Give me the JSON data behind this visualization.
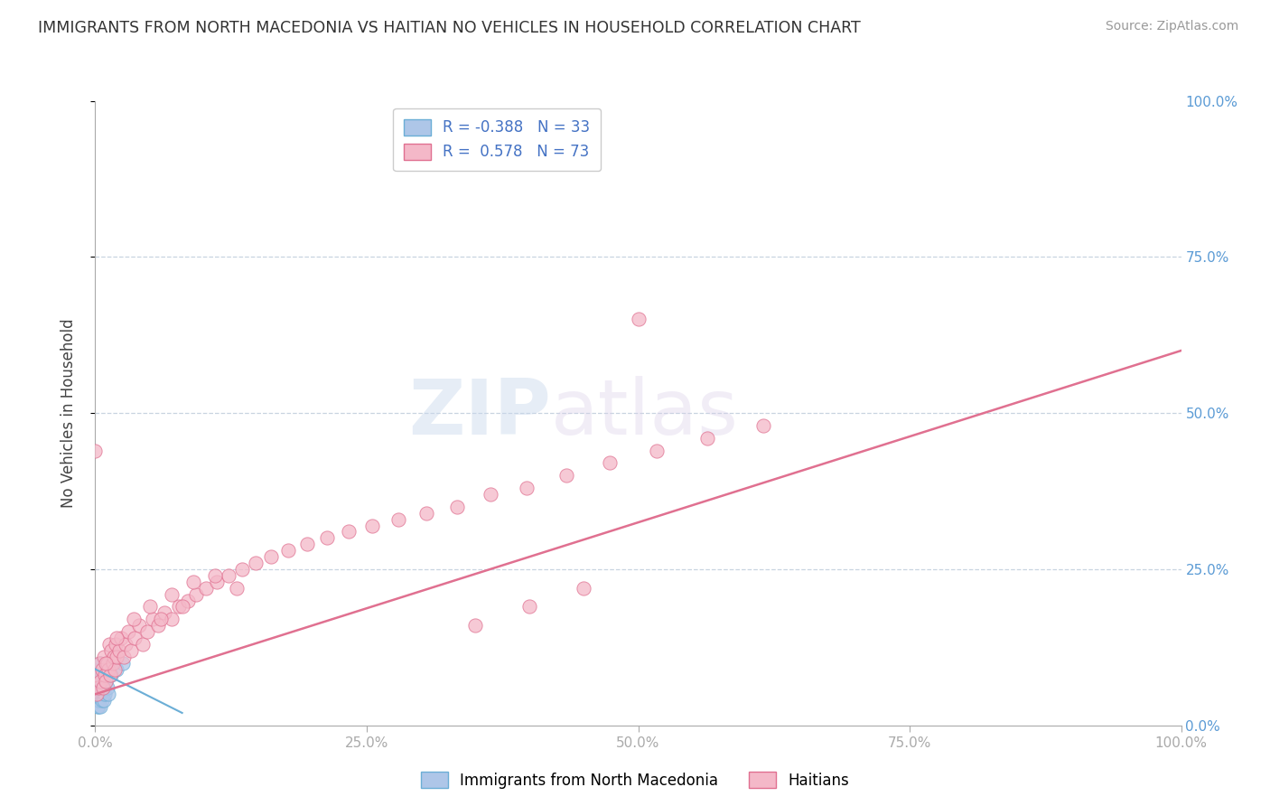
{
  "title": "IMMIGRANTS FROM NORTH MACEDONIA VS HAITIAN NO VEHICLES IN HOUSEHOLD CORRELATION CHART",
  "source": "Source: ZipAtlas.com",
  "ylabel": "No Vehicles in Household",
  "legend_series": [
    {
      "label": "Immigrants from North Macedonia",
      "R": -0.388,
      "N": 33,
      "color": "#aec6e8",
      "edge_color": "#6baed6"
    },
    {
      "label": "Haitians",
      "R": 0.578,
      "N": 73,
      "color": "#f4b8c8",
      "edge_color": "#e07090"
    }
  ],
  "xlim": [
    0.0,
    1.0
  ],
  "ylim": [
    0.0,
    1.0
  ],
  "x_ticks": [
    0.0,
    0.25,
    0.5,
    0.75,
    1.0
  ],
  "x_tick_labels": [
    "0.0%",
    "25.0%",
    "50.0%",
    "75.0%",
    "100.0%"
  ],
  "y_ticks": [
    0.0,
    0.25,
    0.5,
    0.75,
    1.0
  ],
  "y_tick_labels_right": [
    "0.0%",
    "25.0%",
    "50.0%",
    "75.0%",
    "100.0%"
  ],
  "background_color": "#ffffff",
  "grid_color": "#c8d4e0",
  "watermark_zip": "ZIP",
  "watermark_atlas": "atlas",
  "blue_scatter_x": [
    0.001,
    0.001,
    0.001,
    0.002,
    0.002,
    0.002,
    0.002,
    0.003,
    0.003,
    0.003,
    0.003,
    0.004,
    0.004,
    0.004,
    0.004,
    0.005,
    0.005,
    0.005,
    0.005,
    0.006,
    0.006,
    0.006,
    0.007,
    0.007,
    0.008,
    0.008,
    0.009,
    0.01,
    0.011,
    0.012,
    0.015,
    0.02,
    0.025
  ],
  "blue_scatter_y": [
    0.04,
    0.05,
    0.06,
    0.03,
    0.04,
    0.05,
    0.07,
    0.03,
    0.04,
    0.06,
    0.08,
    0.04,
    0.05,
    0.06,
    0.09,
    0.03,
    0.05,
    0.07,
    0.1,
    0.04,
    0.06,
    0.08,
    0.05,
    0.07,
    0.04,
    0.06,
    0.05,
    0.07,
    0.06,
    0.05,
    0.08,
    0.09,
    0.1
  ],
  "pink_scatter_x": [
    0.001,
    0.002,
    0.003,
    0.004,
    0.005,
    0.006,
    0.007,
    0.008,
    0.009,
    0.01,
    0.011,
    0.012,
    0.013,
    0.014,
    0.015,
    0.016,
    0.017,
    0.018,
    0.019,
    0.02,
    0.022,
    0.024,
    0.026,
    0.028,
    0.03,
    0.033,
    0.036,
    0.04,
    0.044,
    0.048,
    0.053,
    0.058,
    0.064,
    0.07,
    0.077,
    0.085,
    0.093,
    0.102,
    0.112,
    0.123,
    0.135,
    0.148,
    0.162,
    0.178,
    0.195,
    0.213,
    0.233,
    0.255,
    0.279,
    0.305,
    0.333,
    0.364,
    0.397,
    0.434,
    0.474,
    0.517,
    0.564,
    0.615,
    0.0,
    0.01,
    0.02,
    0.035,
    0.05,
    0.07,
    0.09,
    0.11,
    0.13,
    0.06,
    0.08,
    0.5,
    0.45,
    0.4,
    0.35
  ],
  "pink_scatter_y": [
    0.05,
    0.08,
    0.06,
    0.1,
    0.07,
    0.09,
    0.06,
    0.11,
    0.08,
    0.07,
    0.1,
    0.09,
    0.13,
    0.08,
    0.12,
    0.1,
    0.11,
    0.09,
    0.13,
    0.11,
    0.12,
    0.14,
    0.11,
    0.13,
    0.15,
    0.12,
    0.14,
    0.16,
    0.13,
    0.15,
    0.17,
    0.16,
    0.18,
    0.17,
    0.19,
    0.2,
    0.21,
    0.22,
    0.23,
    0.24,
    0.25,
    0.26,
    0.27,
    0.28,
    0.29,
    0.3,
    0.31,
    0.32,
    0.33,
    0.34,
    0.35,
    0.37,
    0.38,
    0.4,
    0.42,
    0.44,
    0.46,
    0.48,
    0.44,
    0.1,
    0.14,
    0.17,
    0.19,
    0.21,
    0.23,
    0.24,
    0.22,
    0.17,
    0.19,
    0.65,
    0.22,
    0.19,
    0.16
  ],
  "pink_line": [
    0.0,
    1.0,
    0.05,
    0.6
  ],
  "blue_line": [
    0.0,
    0.08,
    0.09,
    0.02
  ]
}
